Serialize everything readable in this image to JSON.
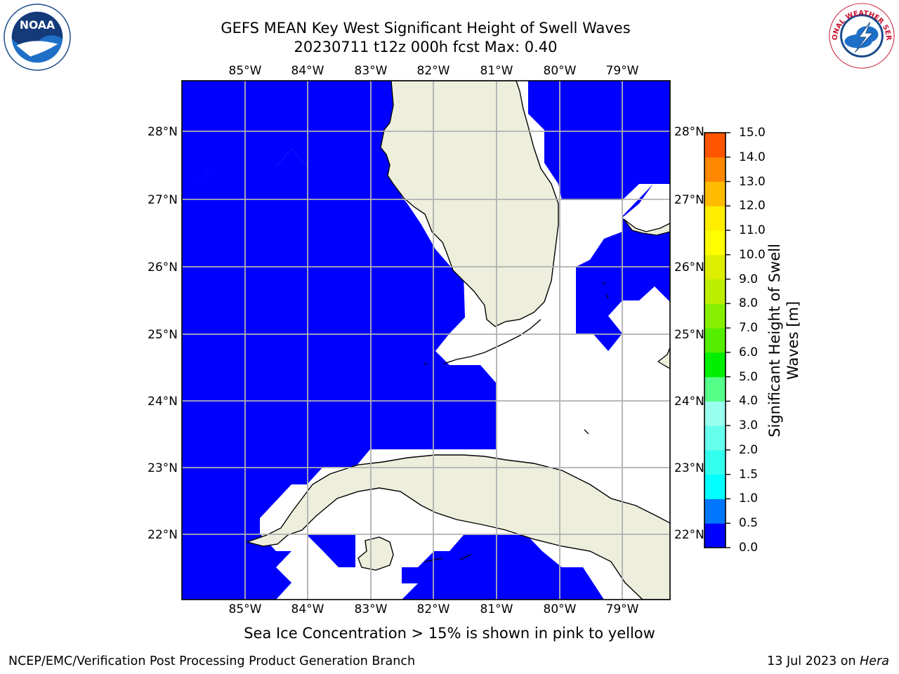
{
  "title": {
    "line1": "GEFS MEAN Key West Significant Height of Swell Waves",
    "line2": "20230711 t12z 000h fcst   Max: 0.40"
  },
  "chart_data": {
    "type": "heatmap",
    "region": "Key West",
    "variable": "Significant Height of Swell Waves",
    "units": "m",
    "max_value": 0.4,
    "lon_range": [
      -86.0,
      -78.5
    ],
    "lat_range": [
      21.0,
      28.8
    ],
    "x_tick_labels": [
      "85°W",
      "84°W",
      "83°W",
      "82°W",
      "81°W",
      "80°W",
      "79°W"
    ],
    "y_tick_labels": [
      "28°N",
      "27°N",
      "26°N",
      "25°N",
      "24°N",
      "23°N",
      "22°N"
    ],
    "grid": true,
    "colorbar": {
      "label": "Significant Height of Swell Waves [m]",
      "placement": "right",
      "levels": [
        "0.0",
        "0.5",
        "1.0",
        "1.5",
        "2.0",
        "3.0",
        "4.0",
        "5.0",
        "6.0",
        "7.0",
        "8.0",
        "9.0",
        "10.0",
        "11.0",
        "12.0",
        "13.0",
        "14.0",
        "15.0"
      ],
      "colors": [
        "#0000ff",
        "#0077ff",
        "#00ffff",
        "#33ffee",
        "#66ffee",
        "#99ffee",
        "#55ff88",
        "#00ee00",
        "#55ee00",
        "#88ee00",
        "#bbee00",
        "#ddee00",
        "#ffff00",
        "#ffee00",
        "#ffbb00",
        "#ff8800",
        "#ff5500",
        "#ff2200",
        "#ff0000"
      ]
    },
    "field_color_shown": "#0000ff",
    "land_color": "#eeeedd"
  },
  "footer": {
    "note": "Sea Ice Concentration > 15% is shown in pink to yellow",
    "credit_left": "NCEP/EMC/Verification Post Processing Product Generation Branch",
    "credit_date": "13 Jul 2023 on ",
    "credit_machine": "Hera"
  },
  "logos": {
    "noaa_text": "NOAA",
    "nws_text": "NATIONAL WEATHER SERVICE"
  }
}
